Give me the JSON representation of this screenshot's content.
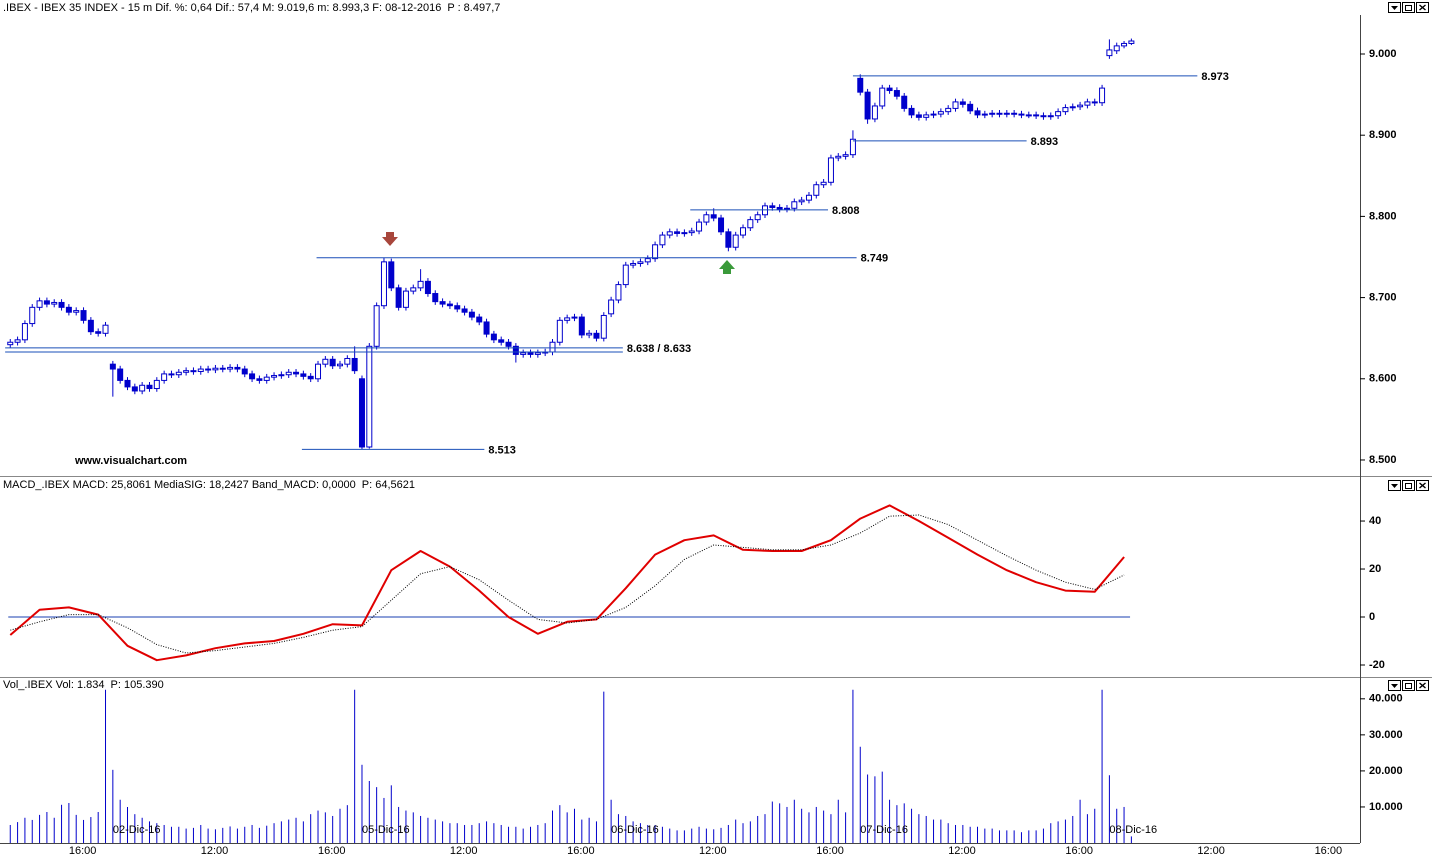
{
  "chart_data": [
    {
      "type": "candlestick",
      "title": ".IBEX - IBEX 35 INDEX - 15 m  Dif. %: 0,64  Dif.: 57,4  M: 9.019,6  m: 8.993,3  F: 08-12-2016",
      "title_p": "P : 8.497,7",
      "color": "#0000cc",
      "level_color": "#1a4fb8",
      "label_color": "#cc1111",
      "title_p_color": "#dd0000",
      "watermark": "www.visualchart.com",
      "xlim": [
        -1.4,
        184.2
      ],
      "ylim": [
        8481.5,
        9046.8
      ],
      "yticks": [
        {
          "value": 8500,
          "label": "8.500"
        },
        {
          "value": 8600,
          "label": "8.600"
        },
        {
          "value": 8700,
          "label": "8.700"
        },
        {
          "value": 8800,
          "label": "8.800"
        },
        {
          "value": 8900,
          "label": "8.900"
        },
        {
          "value": 9000,
          "label": "9.000"
        }
      ],
      "open": [
        8642,
        8645,
        8648,
        8668,
        8688,
        8696,
        8692,
        8694,
        8688,
        8682,
        8684,
        8672,
        8658,
        8656,
        8618,
        8612,
        8598,
        8590,
        8585,
        8592,
        8588,
        8598,
        8606,
        8605,
        8608,
        8610,
        8609,
        8612,
        8611,
        8613,
        8612,
        8614,
        8612,
        8606,
        8600,
        8598,
        8602,
        8604,
        8605,
        8608,
        8606,
        8603,
        8600,
        8618,
        8624,
        8616,
        8618,
        8625,
        8600,
        8516,
        8640,
        8690,
        8744,
        8712,
        8688,
        8708,
        8712,
        8720,
        8705,
        8695,
        8692,
        8690,
        8686,
        8682,
        8676,
        8670,
        8655,
        8648,
        8645,
        8640,
        8630,
        8632,
        8630,
        8632,
        8633,
        8645,
        8672,
        8675,
        8676,
        8654,
        8656,
        8650,
        8680,
        8697,
        8716,
        8740,
        8742,
        8744,
        8748,
        8765,
        8777,
        8781,
        8779,
        8780,
        8782,
        8793,
        8802,
        8798,
        8781,
        8762,
        8777,
        8786,
        8796,
        8802,
        8813,
        8811,
        8809,
        8810,
        8818,
        8820,
        8826,
        8839,
        8842,
        8872,
        8874,
        8876,
        8970,
        8953,
        8920,
        8936,
        8958,
        8955,
        8948,
        8933,
        8925,
        8922,
        8925,
        8926,
        8929,
        8933,
        8941,
        8938,
        8930,
        8925,
        8926,
        8927,
        8926,
        8927,
        8926,
        8925,
        8925,
        8924,
        8923,
        8924,
        8929,
        8934,
        8935,
        8937,
        8941,
        8940,
        8998,
        9004,
        9010,
        9013
      ],
      "high": [
        8649,
        8652,
        8672,
        8692,
        8700,
        8700,
        8698,
        8698,
        8692,
        8688,
        8688,
        8676,
        8662,
        8670,
        8622,
        8616,
        8602,
        8594,
        8596,
        8596,
        8602,
        8610,
        8610,
        8612,
        8614,
        8614,
        8616,
        8616,
        8617,
        8617,
        8618,
        8618,
        8616,
        8610,
        8604,
        8606,
        8608,
        8609,
        8612,
        8612,
        8610,
        8607,
        8622,
        8628,
        8628,
        8622,
        8629,
        8640,
        8604,
        8644,
        8694,
        8749,
        8748,
        8716,
        8712,
        8716,
        8735,
        8724,
        8709,
        8699,
        8696,
        8694,
        8690,
        8686,
        8680,
        8674,
        8659,
        8652,
        8649,
        8644,
        8636,
        8636,
        8636,
        8637,
        8649,
        8676,
        8679,
        8680,
        8680,
        8660,
        8660,
        8682,
        8701,
        8720,
        8744,
        8746,
        8748,
        8752,
        8769,
        8781,
        8785,
        8785,
        8784,
        8786,
        8797,
        8806,
        8810,
        8802,
        8785,
        8781,
        8790,
        8800,
        8806,
        8817,
        8817,
        8815,
        8814,
        8822,
        8824,
        8830,
        8843,
        8846,
        8876,
        8878,
        8880,
        8906,
        8975,
        8957,
        8940,
        8962,
        8962,
        8959,
        8952,
        8937,
        8929,
        8929,
        8930,
        8933,
        8937,
        8945,
        8945,
        8942,
        8934,
        8930,
        8931,
        8931,
        8931,
        8931,
        8930,
        8929,
        8929,
        8928,
        8928,
        8933,
        8938,
        8939,
        8941,
        8945,
        8945,
        8962,
        9018,
        9014,
        9016,
        9019
      ],
      "low": [
        8638,
        8641,
        8644,
        8664,
        8684,
        8688,
        8688,
        8684,
        8678,
        8678,
        8668,
        8654,
        8652,
        8652,
        8578,
        8594,
        8586,
        8581,
        8581,
        8584,
        8584,
        8594,
        8601,
        8601,
        8604,
        8605,
        8605,
        8607,
        8607,
        8608,
        8608,
        8608,
        8602,
        8596,
        8594,
        8594,
        8598,
        8600,
        8601,
        8602,
        8599,
        8596,
        8596,
        8614,
        8612,
        8612,
        8614,
        8606,
        8513,
        8514,
        8636,
        8686,
        8708,
        8684,
        8684,
        8704,
        8708,
        8701,
        8691,
        8688,
        8686,
        8682,
        8678,
        8672,
        8666,
        8651,
        8644,
        8641,
        8636,
        8620,
        8626,
        8626,
        8626,
        8628,
        8629,
        8641,
        8668,
        8671,
        8650,
        8650,
        8646,
        8646,
        8676,
        8693,
        8712,
        8736,
        8738,
        8740,
        8744,
        8761,
        8773,
        8775,
        8775,
        8776,
        8778,
        8789,
        8794,
        8777,
        8757,
        8758,
        8773,
        8782,
        8792,
        8798,
        8807,
        8805,
        8805,
        8806,
        8814,
        8816,
        8822,
        8835,
        8838,
        8868,
        8870,
        8872,
        8949,
        8914,
        8916,
        8932,
        8951,
        8944,
        8929,
        8921,
        8918,
        8918,
        8921,
        8922,
        8925,
        8929,
        8934,
        8926,
        8921,
        8921,
        8922,
        8922,
        8922,
        8922,
        8921,
        8921,
        8920,
        8919,
        8919,
        8920,
        8925,
        8930,
        8931,
        8933,
        8936,
        8936,
        8994,
        9000,
        9007,
        9011
      ],
      "close": [
        8645,
        8648,
        8668,
        8688,
        8696,
        8692,
        8694,
        8688,
        8682,
        8684,
        8672,
        8658,
        8656,
        8666,
        8612,
        8598,
        8590,
        8585,
        8592,
        8588,
        8598,
        8606,
        8605,
        8608,
        8610,
        8609,
        8612,
        8611,
        8613,
        8612,
        8614,
        8612,
        8606,
        8600,
        8598,
        8602,
        8604,
        8605,
        8608,
        8606,
        8603,
        8600,
        8618,
        8624,
        8616,
        8618,
        8625,
        8610,
        8516,
        8640,
        8690,
        8744,
        8712,
        8688,
        8708,
        8712,
        8720,
        8705,
        8695,
        8692,
        8690,
        8686,
        8682,
        8676,
        8670,
        8655,
        8648,
        8645,
        8640,
        8630,
        8632,
        8630,
        8632,
        8633,
        8645,
        8672,
        8675,
        8676,
        8654,
        8656,
        8650,
        8678,
        8697,
        8716,
        8740,
        8742,
        8744,
        8748,
        8765,
        8777,
        8781,
        8779,
        8780,
        8782,
        8793,
        8802,
        8798,
        8781,
        8762,
        8777,
        8786,
        8796,
        8802,
        8813,
        8811,
        8809,
        8810,
        8818,
        8820,
        8826,
        8839,
        8842,
        8872,
        8874,
        8876,
        8895,
        8953,
        8920,
        8936,
        8958,
        8955,
        8948,
        8933,
        8925,
        8922,
        8925,
        8926,
        8929,
        8933,
        8941,
        8938,
        8930,
        8925,
        8926,
        8927,
        8926,
        8927,
        8926,
        8925,
        8925,
        8924,
        8923,
        8924,
        8929,
        8934,
        8935,
        8937,
        8941,
        8940,
        8958,
        9005,
        9010,
        9013,
        9016
      ],
      "levels": [
        {
          "values": [
            8973
          ],
          "label": "8.973",
          "from": 115,
          "to": 162
        },
        {
          "values": [
            8893
          ],
          "label": "8.893",
          "from": 115,
          "to": 138.7
        },
        {
          "values": [
            8808
          ],
          "label": "8.808",
          "from": 92.8,
          "to": 111.6
        },
        {
          "values": [
            8749
          ],
          "label": "8.749",
          "from": 41.8,
          "to": 115.5
        },
        {
          "values": [
            8638,
            8633
          ],
          "label": "8.638 / 8.633",
          "from": -0.7,
          "to": 83.6
        },
        {
          "values": [
            8513
          ],
          "label": "8.513",
          "from": 39.8,
          "to": 64.7
        }
      ]
    },
    {
      "type": "line",
      "title": "MACD_.IBEX MACD: 25,8061  MediaSIG: 18,2427  Band_MACD: 0,0000",
      "title_p": "P: 64,5621",
      "title_p_color": "#dd0000",
      "band": 0,
      "band_color": "#1a3fb0",
      "xlim": [
        -1.4,
        184.2
      ],
      "ylim": [
        -25,
        52.1
      ],
      "yticks": [
        -20,
        0,
        20,
        40
      ],
      "x": [
        0,
        4,
        8,
        12,
        16,
        20,
        24,
        28,
        32,
        36,
        40,
        44,
        48,
        52,
        56,
        60,
        64,
        68,
        72,
        76,
        80,
        84,
        88,
        92,
        96,
        100,
        104,
        108,
        112,
        116,
        120,
        124,
        128,
        132,
        136,
        140,
        144,
        148,
        152
      ],
      "series": [
        {
          "color": "#e00000",
          "width": 2,
          "dashed": false,
          "values": [
            -7.5,
            3,
            4,
            1,
            -12,
            -18,
            -16,
            -13,
            -11,
            -10,
            -7,
            -3,
            -3.5,
            19.5,
            27.5,
            21,
            11,
            0,
            -7,
            -2,
            -1,
            12,
            26,
            32,
            34,
            28,
            27.5,
            27.5,
            32,
            41,
            46.5,
            40,
            33,
            26,
            19.5,
            14.5,
            11,
            10.5,
            25
          ]
        },
        {
          "color": "#000000",
          "width": 1,
          "dashed": true,
          "values": [
            -5.5,
            -2,
            1,
            1,
            -4.5,
            -11.5,
            -15,
            -14,
            -12.5,
            -11,
            -8.5,
            -5.5,
            -4,
            7,
            18,
            21,
            15.5,
            7,
            -1,
            -2.5,
            -1,
            4,
            13,
            24,
            30,
            29,
            28,
            28,
            30,
            35,
            42,
            42.5,
            38.5,
            32,
            25.5,
            19.5,
            14.5,
            11.5,
            17.5
          ]
        }
      ]
    },
    {
      "type": "bar",
      "title": "Vol_.IBEX Vol: 1.834",
      "title_p": "P: 105.390",
      "title_p_color": "#dd0000",
      "color": "#0000cc",
      "xlim": [
        -1.4,
        184.2
      ],
      "ylim": [
        0,
        43000
      ],
      "yticks": [
        {
          "value": 10000,
          "label": "10.000"
        },
        {
          "value": 20000,
          "label": "20.000"
        },
        {
          "value": 30000,
          "label": "30.000"
        },
        {
          "value": 40000,
          "label": "40.000"
        }
      ],
      "xticks": [
        {
          "value": 8,
          "label": "16:00"
        },
        {
          "value": 26,
          "label": "12:00"
        },
        {
          "value": 42,
          "label": "16:00"
        },
        {
          "value": 60,
          "label": "12:00"
        },
        {
          "value": 76,
          "label": "16:00"
        },
        {
          "value": 94,
          "label": "12:00"
        },
        {
          "value": 110,
          "label": "16:00"
        },
        {
          "value": 128,
          "label": "12:00"
        },
        {
          "value": 144,
          "label": "16:00"
        },
        {
          "value": 162,
          "label": "12:00"
        },
        {
          "value": 178,
          "label": "16:00"
        }
      ],
      "date_ticks": [
        {
          "value": 14,
          "label": "02-Dic-16"
        },
        {
          "value": 48,
          "label": "05-Dic-16"
        },
        {
          "value": 82,
          "label": "06-Dic-16"
        },
        {
          "value": 116,
          "label": "07-Dic-16"
        },
        {
          "value": 150,
          "label": "08-Dic-16"
        }
      ],
      "values": [
        5000,
        5800,
        7000,
        6400,
        7800,
        8600,
        7000,
        10600,
        11100,
        7800,
        6400,
        7200,
        8600,
        42500,
        20300,
        12000,
        10000,
        8000,
        7000,
        6000,
        5500,
        5000,
        4500,
        4500,
        4000,
        4200,
        5000,
        4000,
        3800,
        4200,
        4600,
        4000,
        4500,
        5000,
        4200,
        4800,
        5500,
        6000,
        6500,
        7000,
        6000,
        8000,
        9000,
        8500,
        7500,
        9500,
        10500,
        42500,
        21700,
        17200,
        15500,
        12500,
        16000,
        10000,
        9000,
        8500,
        7500,
        7000,
        6500,
        6000,
        5500,
        5500,
        5000,
        5000,
        5500,
        6000,
        5500,
        5000,
        4500,
        4500,
        4000,
        4500,
        5000,
        5500,
        9000,
        10500,
        8500,
        9500,
        6500,
        7000,
        6000,
        42000,
        12000,
        8000,
        7500,
        6000,
        5500,
        5000,
        5000,
        4500,
        4000,
        3500,
        3500,
        4000,
        4500,
        4000,
        3800,
        4200,
        5000,
        6500,
        5500,
        6000,
        7500,
        8000,
        11500,
        11000,
        10000,
        12000,
        9500,
        8500,
        10000,
        9000,
        8000,
        12000,
        8500,
        42500,
        26700,
        19000,
        18500,
        19800,
        12000,
        10500,
        11000,
        9500,
        8000,
        7500,
        6500,
        6500,
        5500,
        5000,
        5000,
        4500,
        4500,
        4000,
        4000,
        3500,
        3500,
        3500,
        3000,
        3500,
        3500,
        4000,
        5500,
        6000,
        6500,
        7500,
        12000,
        8000,
        9500,
        42500,
        18800,
        9500,
        10000,
        1834
      ]
    }
  ]
}
